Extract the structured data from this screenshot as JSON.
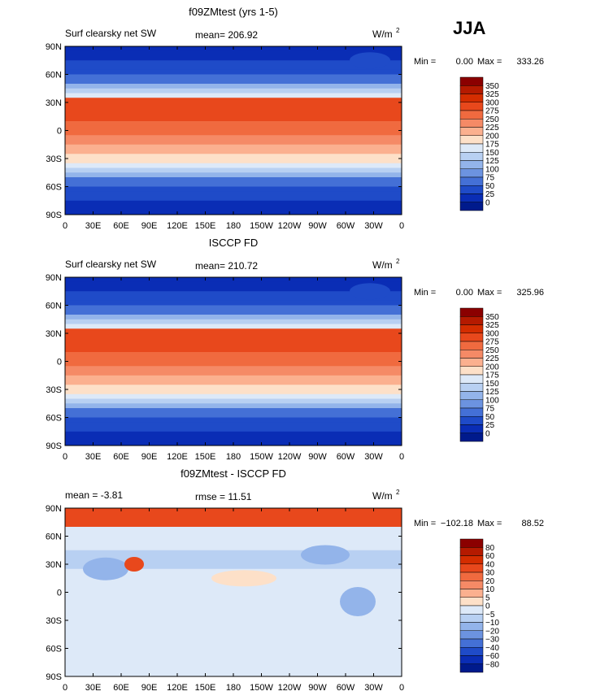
{
  "season": "JJA",
  "chart_data": [
    {
      "type": "heatmap",
      "title": "f09ZMtest (yrs 1-5)",
      "subtitle_left": "Surf clearsky net SW",
      "stat_center": "mean= 206.92",
      "units": "W/m",
      "units_sup": "2",
      "minmax": {
        "min_label": "Min =",
        "min": "0.00",
        "max_label": "Max =",
        "max": "333.26"
      },
      "x_ticks": [
        "0",
        "30E",
        "60E",
        "90E",
        "120E",
        "150E",
        "180",
        "150W",
        "120W",
        "90W",
        "60W",
        "30W",
        "0"
      ],
      "y_ticks": [
        "90N",
        "60N",
        "30N",
        "0",
        "30S",
        "60S",
        "90S"
      ],
      "ylim": [
        -90,
        90
      ],
      "colorbar": {
        "labels": [
          "350",
          "325",
          "300",
          "275",
          "250",
          "225",
          "200",
          "175",
          "150",
          "125",
          "100",
          "75",
          "50",
          "25",
          "0"
        ],
        "colors": [
          "#8b0000",
          "#b51a00",
          "#d42d00",
          "#e8481c",
          "#f06a3f",
          "#f58a66",
          "#fbb08f",
          "#fde0c8",
          "#dde9f8",
          "#b8d0f2",
          "#93b4ea",
          "#6c93e0",
          "#4470d6",
          "#1f4bc8",
          "#0a2db5",
          "#001a8c"
        ]
      }
    },
    {
      "type": "heatmap",
      "title": "ISCCP FD",
      "subtitle_left": "Surf clearsky net SW",
      "stat_center": "mean= 210.72",
      "units": "W/m",
      "units_sup": "2",
      "minmax": {
        "min_label": "Min =",
        "min": "0.00",
        "max_label": "Max =",
        "max": "325.96"
      },
      "x_ticks": [
        "0",
        "30E",
        "60E",
        "90E",
        "120E",
        "150E",
        "180",
        "150W",
        "120W",
        "90W",
        "60W",
        "30W",
        "0"
      ],
      "y_ticks": [
        "90N",
        "60N",
        "30N",
        "0",
        "30S",
        "60S",
        "90S"
      ],
      "ylim": [
        -90,
        90
      ],
      "colorbar": {
        "labels": [
          "350",
          "325",
          "300",
          "275",
          "250",
          "225",
          "200",
          "175",
          "150",
          "125",
          "100",
          "75",
          "50",
          "25",
          "0"
        ],
        "colors": [
          "#8b0000",
          "#b51a00",
          "#d42d00",
          "#e8481c",
          "#f06a3f",
          "#f58a66",
          "#fbb08f",
          "#fde0c8",
          "#dde9f8",
          "#b8d0f2",
          "#93b4ea",
          "#6c93e0",
          "#4470d6",
          "#1f4bc8",
          "#0a2db5",
          "#001a8c"
        ]
      }
    },
    {
      "type": "heatmap",
      "title": "f09ZMtest - ISCCP FD",
      "subtitle_left": "mean =   -3.81",
      "stat_center": "rmse =   11.51",
      "units": "W/m",
      "units_sup": "2",
      "minmax": {
        "min_label": "Min =",
        "min": "−102.18",
        "max_label": "Max =",
        "max": "88.52"
      },
      "x_ticks": [
        "0",
        "30E",
        "60E",
        "90E",
        "120E",
        "150E",
        "180",
        "150W",
        "120W",
        "90W",
        "60W",
        "30W",
        "0"
      ],
      "y_ticks": [
        "90N",
        "60N",
        "30N",
        "0",
        "30S",
        "60S",
        "90S"
      ],
      "ylim": [
        -90,
        90
      ],
      "colorbar": {
        "labels": [
          "80",
          "60",
          "40",
          "30",
          "20",
          "10",
          "5",
          "0",
          "−5",
          "−10",
          "−20",
          "−30",
          "−40",
          "−60",
          "−80"
        ],
        "colors": [
          "#8b0000",
          "#b51a00",
          "#d42d00",
          "#e8481c",
          "#f06a3f",
          "#f58a66",
          "#fbb08f",
          "#fde0c8",
          "#dde9f8",
          "#b8d0f2",
          "#93b4ea",
          "#6c93e0",
          "#4470d6",
          "#1f4bc8",
          "#0a2db5",
          "#001a8c"
        ]
      }
    }
  ]
}
